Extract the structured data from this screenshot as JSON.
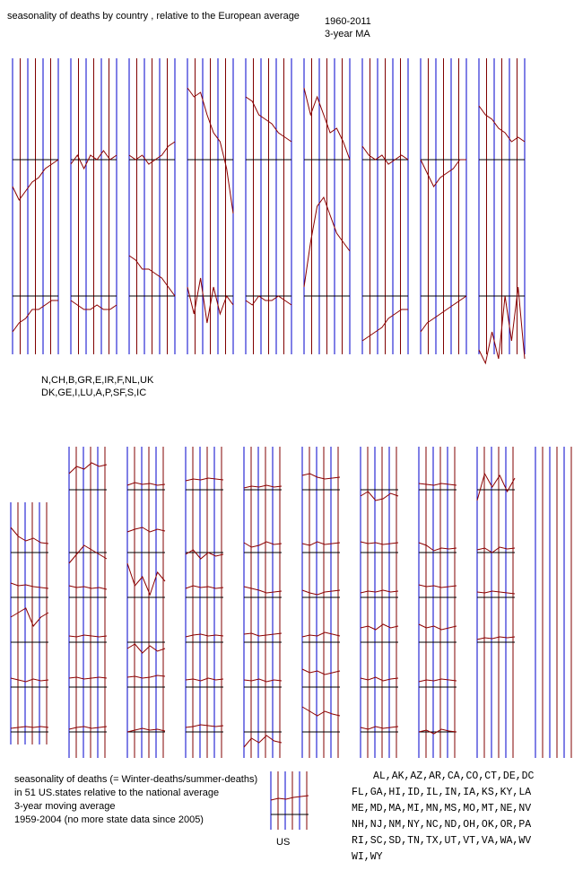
{
  "header": {
    "title": "seasonality of deaths by country , relative to the European average",
    "period": "1960-2011",
    "smoothing": "3-year MA"
  },
  "europe": {
    "legend_top": "N,CH,B,GR,E,IR,F,NL,UK",
    "legend_bottom": "DK,GE,I,LU,A,P,SF,S,IC",
    "top_row": [
      [
        -30,
        -45,
        -35,
        -25,
        -20,
        -10,
        -5,
        0
      ],
      [
        -5,
        5,
        -10,
        5,
        0,
        10,
        0,
        5
      ],
      [
        5,
        0,
        5,
        -5,
        0,
        5,
        15,
        20
      ],
      [
        80,
        70,
        75,
        50,
        30,
        20,
        -10,
        -60
      ],
      [
        70,
        65,
        50,
        45,
        40,
        30,
        25,
        20
      ],
      [
        80,
        50,
        70,
        50,
        30,
        35,
        20,
        0
      ],
      [
        15,
        5,
        0,
        5,
        -5,
        0,
        5,
        0
      ],
      [
        0,
        -15,
        -30,
        -20,
        -15,
        -10,
        0,
        0
      ],
      [
        60,
        50,
        45,
        35,
        30,
        20,
        25,
        20
      ]
    ],
    "bottom_row": [
      [
        -40,
        -30,
        -25,
        -15,
        -15,
        -10,
        -5,
        -5
      ],
      [
        -5,
        -10,
        -15,
        -15,
        -10,
        -15,
        -15,
        -10
      ],
      [
        45,
        40,
        30,
        30,
        25,
        20,
        10,
        0
      ],
      [
        10,
        -20,
        20,
        -30,
        10,
        -20,
        0,
        -10
      ],
      [
        -5,
        -10,
        0,
        -5,
        -5,
        0,
        -5,
        -10
      ],
      [
        10,
        60,
        100,
        110,
        90,
        70,
        60,
        50
      ],
      [
        -50,
        -45,
        -40,
        -35,
        -25,
        -20,
        -15,
        -15
      ],
      [
        -40,
        -30,
        -25,
        -20,
        -15,
        -10,
        -5,
        0
      ],
      [
        -60,
        -75,
        -40,
        -70,
        0,
        -50,
        10,
        -70
      ]
    ]
  },
  "us": {
    "notes": [
      "seasonality of deaths (= Winter-deaths/summer-deaths)",
      "in 51 US.states relative to the national average",
      "3-year moving average",
      "1959-2004 (no more state data since 2005)"
    ],
    "national_label": "US",
    "national": [
      -2,
      0,
      -1,
      1,
      2,
      3
    ],
    "states": [
      [
        20,
        10,
        5,
        8,
        3,
        2
      ],
      [
        8,
        5,
        6,
        4,
        3,
        2
      ],
      [
        20,
        25,
        30,
        10,
        20,
        25
      ],
      [
        2,
        0,
        -2,
        1,
        -1,
        0
      ],
      [
        -4,
        -3,
        -2,
        -3,
        -2,
        -3
      ],
      [
        10,
        18,
        15,
        22,
        18,
        20
      ],
      [
        -20,
        -10,
        0,
        -5,
        -10,
        -15
      ],
      [
        5,
        3,
        4,
        2,
        3,
        1
      ],
      [
        -1,
        -2,
        0,
        -1,
        -2,
        -1
      ],
      [
        2,
        3,
        1,
        2,
        3,
        2
      ],
      [
        -5,
        -3,
        -2,
        -4,
        -3,
        -2
      ],
      [
        -3,
        0,
        -2,
        -1,
        -3,
        -2
      ],
      [
        15,
        18,
        20,
        15,
        18,
        16
      ],
      [
        30,
        5,
        15,
        -5,
        20,
        10
      ],
      [
        -15,
        -10,
        -20,
        -12,
        -18,
        -15
      ],
      [
        3,
        4,
        2,
        3,
        5,
        4
      ],
      [
        -8,
        -6,
        -4,
        -6,
        -5,
        -7
      ],
      [
        2,
        4,
        3,
        5,
        4,
        3
      ],
      [
        -10,
        -5,
        -15,
        -8,
        -12,
        -10
      ],
      [
        2,
        5,
        3,
        4,
        2,
        3
      ],
      [
        -2,
        0,
        1,
        -1,
        0,
        -1
      ],
      [
        0,
        1,
        -1,
        2,
        0,
        1
      ],
      [
        -3,
        -2,
        0,
        -1,
        -2,
        -1
      ],
      [
        -6,
        -4,
        -5,
        -3,
        -5,
        -4
      ],
      [
        3,
        -2,
        0,
        4,
        1,
        2
      ],
      [
        4,
        2,
        0,
        -3,
        -2,
        -1
      ],
      [
        1,
        2,
        -1,
        0,
        1,
        2
      ],
      [
        0,
        -1,
        1,
        -2,
        0,
        -1
      ],
      [
        -25,
        -15,
        -20,
        -12,
        -18,
        -20
      ],
      [
        8,
        10,
        6,
        4,
        5,
        6
      ],
      [
        2,
        0,
        4,
        1,
        2,
        3
      ],
      [
        0,
        -3,
        -5,
        -2,
        -1,
        0
      ],
      [
        -2,
        0,
        -1,
        3,
        1,
        -1
      ],
      [
        12,
        8,
        10,
        6,
        8,
        10
      ],
      [
        20,
        15,
        10,
        15,
        12,
        10
      ],
      [
        -15,
        -10,
        -20,
        -18,
        -12,
        -15
      ],
      [
        4,
        2,
        3,
        1,
        2,
        3
      ],
      [
        -3,
        -1,
        -2,
        0,
        -2,
        -1
      ],
      [
        8,
        10,
        6,
        12,
        8,
        10
      ],
      [
        2,
        0,
        3,
        -1,
        1,
        2
      ],
      [
        -3,
        -5,
        -2,
        -4,
        -3,
        -2
      ],
      [
        -1,
        -2,
        -3,
        -1,
        -2,
        -3
      ],
      [
        3,
        0,
        -6,
        -3,
        -4,
        -3
      ],
      [
        6,
        4,
        5,
        3,
        4,
        5
      ],
      [
        12,
        8,
        10,
        6,
        8,
        10
      ],
      [
        -2,
        0,
        -1,
        1,
        0,
        -1
      ],
      [
        -8,
        -6,
        -10,
        -5,
        -7,
        -8
      ],
      [
        -20,
        10,
        -5,
        8,
        -10,
        5
      ],
      [
        -5,
        -3,
        -8,
        -2,
        -4,
        -3
      ],
      [
        -2,
        -3,
        -1,
        -2,
        -3,
        -4
      ],
      [
        -5,
        -3,
        -4,
        -2,
        -3,
        -2
      ]
    ],
    "state_list": [
      "AL,AK,AZ,AR,CA,CO,CT,DE,DC",
      "FL,GA,HI,ID,IL,IN,IA,KS,KY,LA",
      "ME,MD,MA,MI,MN,MS,MO,MT,NE,NV",
      "NH,NJ,NM,NY,NC,ND,OH,OK,OR,PA",
      "RI,SC,SD,TN,TX,UT,VT,VA,WA,WV",
      "WI,WY"
    ]
  }
}
